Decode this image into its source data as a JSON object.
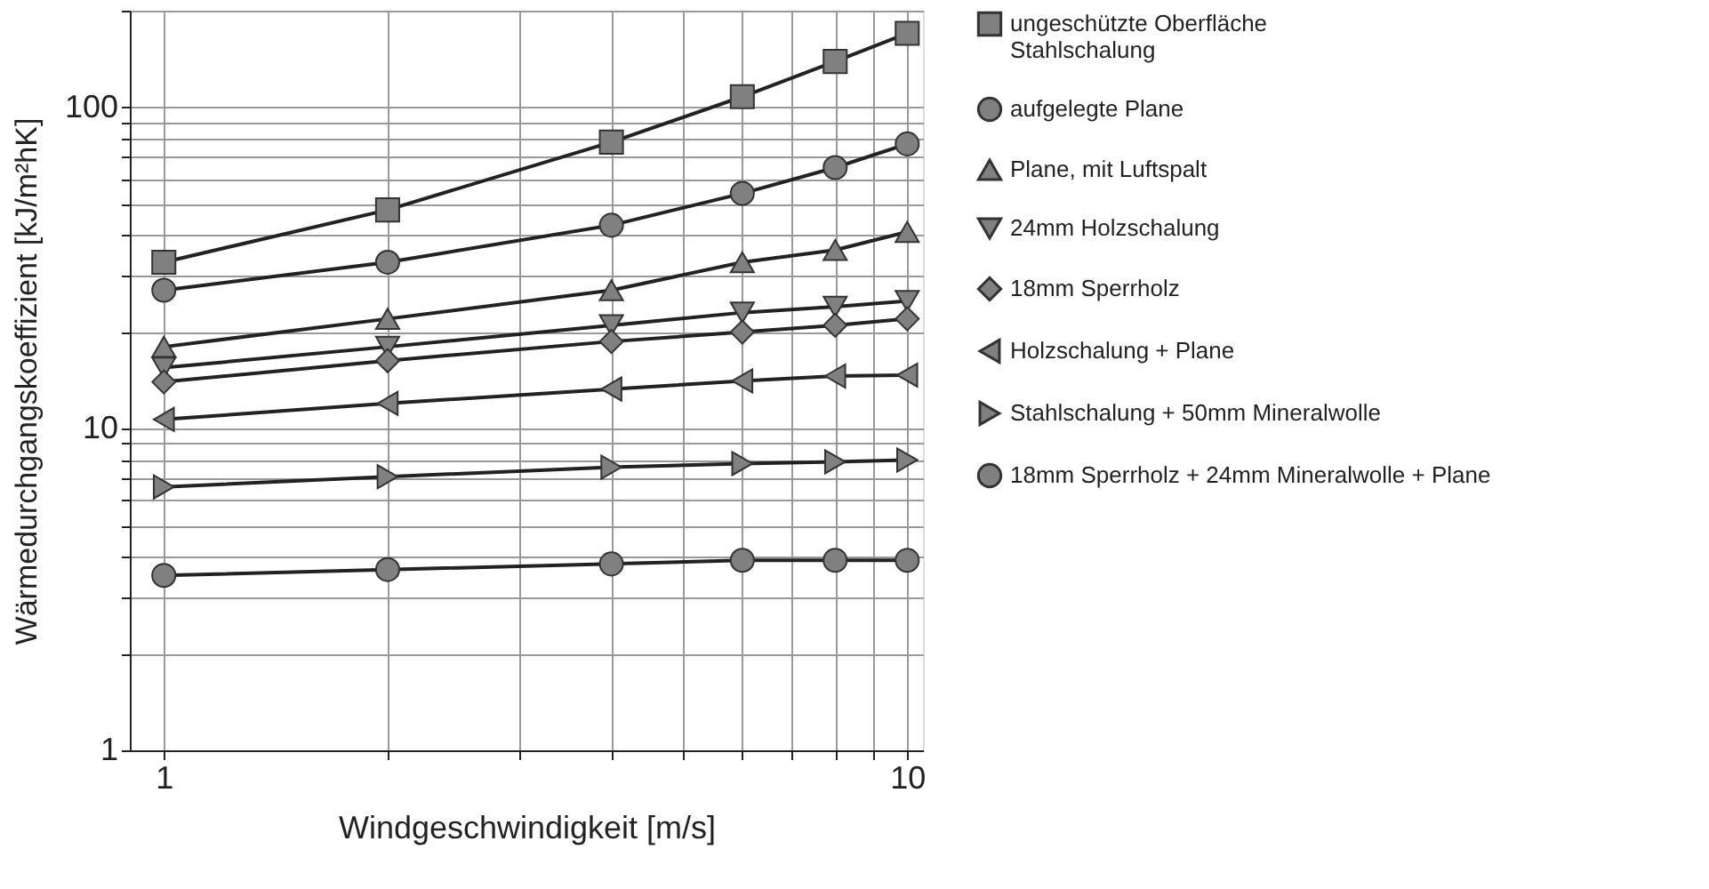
{
  "chart_data": {
    "type": "line",
    "xlabel": "Windgeschwindigkeit [m/s]",
    "ylabel": "Wärmedurchgangskoeffizient [kJ/m²hK]",
    "x": [
      1,
      2,
      4,
      6,
      8,
      10
    ],
    "xlim": [
      0.9,
      10.5
    ],
    "xticks": [
      1,
      {
        "value": 2,
        "label": null
      },
      {
        "value": 3,
        "label": null
      },
      {
        "value": 4,
        "label": null
      },
      {
        "value": 5,
        "label": null
      },
      {
        "value": 6,
        "label": null
      },
      {
        "value": 7,
        "label": null
      },
      {
        "value": 8,
        "label": null
      },
      {
        "value": 9,
        "label": null
      },
      10
    ],
    "ylim": [
      1,
      200
    ],
    "yticks": [
      1,
      {
        "value": 2,
        "label": null
      },
      {
        "value": 3,
        "label": null
      },
      {
        "value": 4,
        "label": null
      },
      {
        "value": 5,
        "label": null
      },
      {
        "value": 6,
        "label": null
      },
      {
        "value": 7,
        "label": null
      },
      {
        "value": 8,
        "label": null
      },
      {
        "value": 9,
        "label": null
      },
      10,
      {
        "value": 20,
        "label": null
      },
      {
        "value": 30,
        "label": null
      },
      {
        "value": 40,
        "label": null
      },
      {
        "value": 50,
        "label": null
      },
      {
        "value": 60,
        "label": null
      },
      {
        "value": 70,
        "label": null
      },
      {
        "value": 80,
        "label": null
      },
      {
        "value": 90,
        "label": null
      },
      100,
      {
        "value": 200,
        "label": null
      }
    ],
    "log": "xy",
    "grid": true,
    "legend": "right",
    "line_style": "solid",
    "series": [
      {
        "name": "ungeschützte Oberfläche\nStahlschalung",
        "color": "#808080",
        "marker": "square",
        "values": [
          33,
          48,
          78,
          108,
          139,
          170
        ]
      },
      {
        "name": "aufgelegte Plane",
        "color": "#808080",
        "marker": "circle",
        "values": [
          27,
          33,
          43,
          54,
          65,
          77
        ]
      },
      {
        "name": "Plane, mit Luftspalt",
        "color": "#808080",
        "marker": "triangle",
        "values": [
          18,
          22,
          27,
          33,
          36,
          41
        ]
      },
      {
        "name": "24mm Holzschalung",
        "color": "#808080",
        "marker": "triangle-down",
        "values": [
          15.5,
          18,
          21,
          23,
          24,
          25
        ]
      },
      {
        "name": "18mm Sperrholz",
        "color": "#808080",
        "marker": "diamond",
        "values": [
          14,
          16.3,
          18.7,
          20,
          21,
          22
        ]
      },
      {
        "name": "Holzschalung + Plane",
        "color": "#808080",
        "marker": "triangle-left",
        "values": [
          10.7,
          12,
          13.3,
          14.1,
          14.6,
          14.7
        ]
      },
      {
        "name": "Stahlschalung + 50mm Mineralwolle",
        "color": "#808080",
        "marker": "triangle-right",
        "values": [
          6.6,
          7.1,
          7.6,
          7.8,
          7.9,
          8.0
        ]
      },
      {
        "name": "18mm Sperrholz + 24mm Mineralwolle + Plane",
        "color": "#808080",
        "marker": "circle",
        "values": [
          3.5,
          3.65,
          3.8,
          3.9,
          3.9,
          3.9
        ]
      }
    ]
  }
}
